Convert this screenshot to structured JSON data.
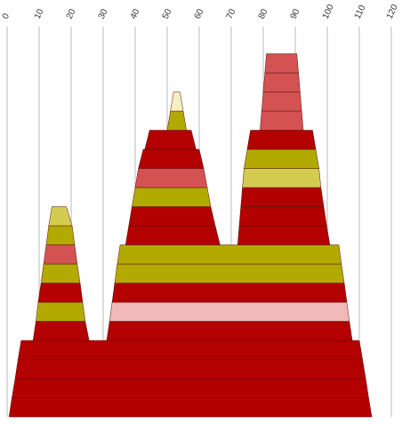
{
  "chart_data": {
    "type": "mountain",
    "xlim": [
      0,
      120
    ],
    "xticks": [
      0,
      10,
      20,
      30,
      40,
      50,
      60,
      70,
      80,
      90,
      100,
      110,
      120
    ],
    "grid": true,
    "layers": [
      [
        {
          "color": "#b30000",
          "x": [
            0.6,
            113.9,
            1.5,
            112.9
          ]
        }
      ],
      [
        {
          "color": "#b30000",
          "x": [
            1.5,
            112.9,
            2.5,
            112
          ]
        }
      ],
      [
        {
          "color": "#b30000",
          "x": [
            2.5,
            112,
            3.4,
            111
          ]
        }
      ],
      [
        {
          "color": "#b30000",
          "x": [
            3.4,
            111,
            4.4,
            110
          ]
        }
      ],
      [
        {
          "color": "#b30000",
          "x": [
            8.1,
            25.6,
            9,
            24.4
          ]
        },
        {
          "color": "#b30000",
          "x": [
            31.1,
            107.8,
            32,
            106.9
          ]
        }
      ],
      [
        {
          "color": "#b3aa00",
          "x": [
            9,
            24.4,
            9.7,
            23.6
          ]
        },
        {
          "color": "#f0b8b8",
          "x": [
            32,
            106.9,
            32.8,
            106.1
          ]
        }
      ],
      [
        {
          "color": "#b30000",
          "x": [
            9.7,
            23.6,
            10.6,
            22.8
          ]
        },
        {
          "color": "#b30000",
          "x": [
            32.8,
            106.1,
            33.6,
            105.3
          ]
        }
      ],
      [
        {
          "color": "#b3aa00",
          "x": [
            10.6,
            22.8,
            11.4,
            21.9
          ]
        },
        {
          "color": "#b3aa00",
          "x": [
            33.6,
            105.3,
            34.4,
            104.4
          ]
        }
      ],
      [
        {
          "color": "#d45252",
          "x": [
            11.4,
            21.9,
            12.2,
            21.1
          ]
        },
        {
          "color": "#b3aa00",
          "x": [
            34.4,
            104.4,
            35.3,
            103.6
          ]
        }
      ],
      [
        {
          "color": "#b3aa00",
          "x": [
            12.2,
            21.1,
            13,
            20.3
          ]
        },
        {
          "color": "#b30000",
          "x": [
            37,
            66.5,
            38,
            65
          ]
        },
        {
          "color": "#b30000",
          "x": [
            72,
            100.8,
            72.5,
            99.8
          ]
        }
      ],
      [
        {
          "color": "#d4cc50",
          "x": [
            13,
            20.3,
            14,
            18.5
          ]
        },
        {
          "color": "#b30000",
          "x": [
            38,
            65,
            39,
            63.6
          ]
        },
        {
          "color": "#b30000",
          "x": [
            72.5,
            99.8,
            73,
            98.9
          ]
        }
      ],
      [
        {
          "color": "#b3aa00",
          "x": [
            39,
            63.6,
            40,
            62.5
          ]
        },
        {
          "color": "#b30000",
          "x": [
            73,
            98.9,
            73.5,
            98
          ]
        }
      ],
      [
        {
          "color": "#d45252",
          "x": [
            40,
            62.5,
            41,
            61.4
          ]
        },
        {
          "color": "#d4cc50",
          "x": [
            73.5,
            98,
            74,
            97.4
          ]
        }
      ],
      [
        {
          "color": "#b30000",
          "x": [
            41,
            61.4,
            42.5,
            60
          ]
        },
        {
          "color": "#b3aa00",
          "x": [
            74,
            97.4,
            75,
            96.4
          ]
        }
      ],
      [
        {
          "color": "#b30000",
          "x": [
            43,
            59,
            44.5,
            57.5
          ]
        },
        {
          "color": "#b30000",
          "x": [
            75,
            96.4,
            76,
            95.4
          ]
        }
      ],
      [
        {
          "color": "#b3aa00",
          "x": [
            50,
            56,
            51,
            55
          ]
        },
        {
          "color": "#d45252",
          "x": [
            79,
            92.5,
            79.5,
            92
          ]
        }
      ],
      [
        {
          "color": "#f5f0c0",
          "x": [
            51,
            55,
            52,
            54
          ]
        },
        {
          "color": "#d45252",
          "x": [
            79.5,
            92,
            80,
            91.5
          ]
        }
      ],
      [
        {
          "color": "#d45252",
          "x": [
            80,
            91.5,
            80.5,
            91
          ]
        }
      ],
      [
        {
          "color": "#d45252",
          "x": [
            80.5,
            91,
            81,
            90.5
          ]
        }
      ]
    ]
  }
}
